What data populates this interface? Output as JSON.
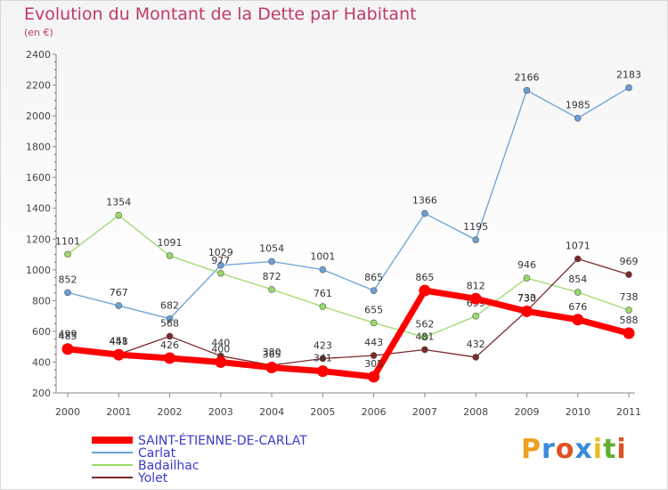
{
  "chart_data": {
    "type": "line",
    "title": "Evolution du Montant de la Dette par Habitant",
    "subtitle": "(en €)",
    "xlabel": "",
    "ylabel": "",
    "x": [
      "2000",
      "2001",
      "2002",
      "2003",
      "2004",
      "2005",
      "2006",
      "2007",
      "2008",
      "2009",
      "2010",
      "2011"
    ],
    "ylim": [
      200,
      2400
    ],
    "yticks": [
      200,
      400,
      600,
      800,
      1000,
      1200,
      1400,
      1600,
      1800,
      2000,
      2200,
      2400
    ],
    "grid": false,
    "legend_position": "bottom-left",
    "series": [
      {
        "name": "SAINT-ÉTIENNE-DE-CARLAT",
        "color": "#ff0000",
        "values": [
          485,
          448,
          426,
          400,
          365,
          341,
          305,
          865,
          812,
          730,
          676,
          588
        ]
      },
      {
        "name": "Carlat",
        "color": "#6aa0d8",
        "values": [
          852,
          767,
          682,
          1029,
          1054,
          1001,
          865,
          1366,
          1195,
          2166,
          1985,
          2183
        ]
      },
      {
        "name": "Badailhac",
        "color": "#9ada6a",
        "values": [
          1101,
          1354,
          1091,
          977,
          872,
          761,
          655,
          562,
          699,
          946,
          854,
          738
        ]
      },
      {
        "name": "Yolet",
        "color": "#7a2a2a",
        "values": [
          499,
          451,
          568,
          440,
          380,
          423,
          443,
          481,
          432,
          733,
          1071,
          969
        ]
      }
    ]
  },
  "logo": {
    "p": "P",
    "r": "r",
    "o": "o",
    "x": "x",
    "i": "i",
    "t": "t",
    "i2": "i"
  }
}
